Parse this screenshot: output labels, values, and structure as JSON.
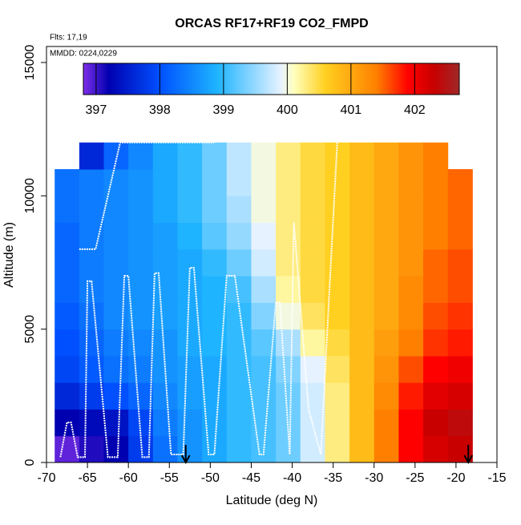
{
  "chart_data": {
    "type": "heatmap",
    "title": "ORCAS RF17+RF19 CO2_FMPD",
    "annotations": [
      "Flts: 17,19",
      "MMDD: 0224,0229"
    ],
    "xlabel": "Latitude (deg N)",
    "ylabel": "Altitude (m)",
    "xlim": [
      -70,
      -15
    ],
    "xticks": [
      -70,
      -65,
      -60,
      -55,
      -50,
      -45,
      -40,
      -35,
      -30,
      -25,
      -20,
      -15
    ],
    "ylim": [
      0,
      15600
    ],
    "yticks": [
      0,
      5000,
      10000,
      15000
    ],
    "x": [
      -67.5,
      -64.5,
      -61.5,
      -58.5,
      -55.5,
      -52.5,
      -49.5,
      -46.5,
      -43.5,
      -40.5,
      -37.5,
      -34.5,
      -31.5,
      -28.5,
      -25.5,
      -22.5,
      -19.5
    ],
    "y": [
      500,
      1500,
      2500,
      3500,
      4500,
      5500,
      6500,
      7500,
      8500,
      9500,
      10500,
      11500
    ],
    "z": [
      [
        396.9,
        397.1,
        397.2,
        397.8,
        398.3,
        398.6,
        398.8,
        399.0,
        399.1,
        399.3,
        399.8,
        400.3,
        400.8,
        401.4,
        401.9,
        402.2,
        402.3
      ],
      [
        397.2,
        397.3,
        397.4,
        397.9,
        398.4,
        398.6,
        398.8,
        399.0,
        399.1,
        399.3,
        399.8,
        400.3,
        400.8,
        401.4,
        401.9,
        402.3,
        402.4
      ],
      [
        397.6,
        397.8,
        398.0,
        398.2,
        398.5,
        398.7,
        398.8,
        399.0,
        399.1,
        399.3,
        399.8,
        400.3,
        400.8,
        401.3,
        401.8,
        402.1,
        402.2
      ],
      [
        397.9,
        398.1,
        398.3,
        398.4,
        398.6,
        398.7,
        398.8,
        399.0,
        399.1,
        399.4,
        399.9,
        400.4,
        400.8,
        401.2,
        401.6,
        401.9,
        402.0
      ],
      [
        398.0,
        398.2,
        398.4,
        398.5,
        398.6,
        398.8,
        398.9,
        399.0,
        399.2,
        399.6,
        400.2,
        400.5,
        400.8,
        401.1,
        401.4,
        401.7,
        401.8
      ],
      [
        398.1,
        398.3,
        398.5,
        398.6,
        398.7,
        398.8,
        398.9,
        399.0,
        399.4,
        400.0,
        400.4,
        400.6,
        400.8,
        401.0,
        401.3,
        401.6,
        401.7
      ],
      [
        398.2,
        398.4,
        398.5,
        398.6,
        398.7,
        398.8,
        398.9,
        399.1,
        399.6,
        400.2,
        400.5,
        400.6,
        400.8,
        401.0,
        401.3,
        401.5,
        401.6
      ],
      [
        398.2,
        398.4,
        398.5,
        398.6,
        398.7,
        398.8,
        399.0,
        399.3,
        399.8,
        400.3,
        400.5,
        400.6,
        400.8,
        401.0,
        401.2,
        401.5,
        401.6
      ],
      [
        398.2,
        398.4,
        398.5,
        398.6,
        398.7,
        398.9,
        399.2,
        399.5,
        399.9,
        400.3,
        400.5,
        400.6,
        400.8,
        401.0,
        401.2,
        401.4,
        401.5
      ],
      [
        398.3,
        398.4,
        398.5,
        398.6,
        398.8,
        399.0,
        399.3,
        399.6,
        400.0,
        400.3,
        400.5,
        400.6,
        400.8,
        401.0,
        401.2,
        401.4,
        401.5
      ],
      [
        398.3,
        398.4,
        398.5,
        398.6,
        398.8,
        399.0,
        399.3,
        399.7,
        400.0,
        400.3,
        400.5,
        400.6,
        400.8,
        401.0,
        401.2,
        401.4,
        401.5
      ],
      [
        null,
        397.6,
        398.2,
        398.5,
        398.8,
        399.0,
        399.3,
        399.7,
        400.0,
        400.3,
        400.5,
        400.6,
        400.8,
        401.0,
        401.2,
        401.4,
        null
      ]
    ],
    "clim": [
      396.8,
      402.7
    ],
    "cticks": [
      397,
      398,
      399,
      400,
      401,
      402
    ],
    "colorscale": [
      [
        396.8,
        "#7f2fe8"
      ],
      [
        397.2,
        "#0000b0"
      ],
      [
        398,
        "#0050ff"
      ],
      [
        398.9,
        "#1eb4ff"
      ],
      [
        399.9,
        "#e6f2ff"
      ],
      [
        400.1,
        "#ffffc0"
      ],
      [
        400.6,
        "#ffd020"
      ],
      [
        401.4,
        "#ff8000"
      ],
      [
        401.9,
        "#ff0000"
      ],
      [
        402.3,
        "#c80000"
      ],
      [
        402.7,
        "#a02828"
      ]
    ],
    "track": {
      "color": "#ffffff",
      "x": [
        -68.3,
        -67.5,
        -67,
        -66.2,
        -65.3,
        -65,
        -64.5,
        -62.5,
        -61.3,
        -60.5,
        -60,
        -58.3,
        -57.5,
        -56.8,
        -56.3,
        -54.8,
        -53.3,
        -52.5,
        -52,
        -50.2,
        -49.5,
        -48,
        -47,
        -44,
        -43.5,
        -42,
        -41.5,
        -40.3,
        -39.8,
        -38,
        -36.5,
        -35.5,
        -34.5,
        null,
        -66,
        -64,
        -61,
        -57,
        -54,
        -51,
        -49.5
      ],
      "y": [
        200,
        1500,
        1500,
        200,
        200,
        6800,
        6800,
        200,
        200,
        7000,
        7000,
        200,
        200,
        7100,
        7100,
        300,
        300,
        7300,
        7300,
        300,
        300,
        7000,
        7000,
        300,
        300,
        6000,
        6000,
        300,
        9000,
        2000,
        300,
        6200,
        12000,
        null,
        8000,
        8000,
        12000,
        12000,
        12000,
        12000,
        12000
      ]
    },
    "arrows": [
      -53,
      -18.5
    ]
  }
}
